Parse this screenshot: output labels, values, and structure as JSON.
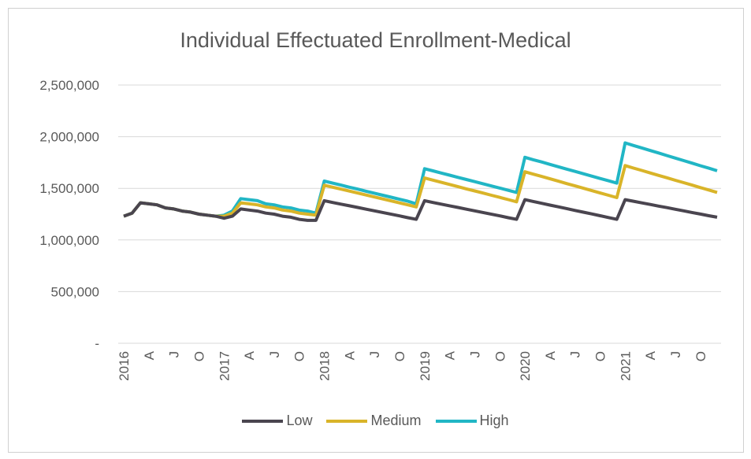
{
  "chart_data": {
    "type": "line",
    "title": "Individual Effectuated Enrollment-Medical",
    "xlabel": "",
    "ylabel": "",
    "ylim": [
      0,
      2500000
    ],
    "y_ticks": [
      0,
      500000,
      1000000,
      1500000,
      2000000,
      2500000
    ],
    "y_tick_labels": [
      "-",
      "500,000",
      "1,000,000",
      "1,500,000",
      "2,000,000",
      "2,500,000"
    ],
    "x_tick_labels": [
      "2016",
      "A",
      "J",
      "O",
      "2017",
      "A",
      "J",
      "O",
      "2018",
      "A",
      "J",
      "O",
      "2019",
      "A",
      "J",
      "O",
      "2020",
      "A",
      "J",
      "O",
      "2021",
      "A",
      "J",
      "O"
    ],
    "x_start": "2016-01",
    "x_end": "2021-12",
    "x_frequency": "monthly",
    "grid": true,
    "legend": "bottom",
    "series": [
      {
        "name": "Low",
        "color": "#4a454f",
        "values": [
          1230000,
          1260000,
          1360000,
          1350000,
          1340000,
          1310000,
          1300000,
          1280000,
          1270000,
          1250000,
          1240000,
          1230000,
          1210000,
          1230000,
          1300000,
          1290000,
          1280000,
          1260000,
          1250000,
          1230000,
          1220000,
          1200000,
          1190000,
          1190000,
          1380000,
          1363000,
          1347000,
          1331000,
          1315000,
          1298000,
          1282000,
          1266000,
          1249000,
          1233000,
          1216000,
          1200000,
          1380000,
          1363000,
          1347000,
          1331000,
          1315000,
          1298000,
          1282000,
          1266000,
          1249000,
          1233000,
          1216000,
          1200000,
          1390000,
          1373000,
          1355000,
          1338000,
          1321000,
          1304000,
          1286000,
          1269000,
          1252000,
          1235000,
          1217000,
          1200000,
          1390000,
          1375000,
          1359000,
          1344000,
          1328000,
          1313000,
          1297000,
          1282000,
          1266000,
          1251000,
          1235000,
          1220000
        ]
      },
      {
        "name": "Medium",
        "color": "#d9b429",
        "values": [
          1230000,
          1260000,
          1360000,
          1350000,
          1340000,
          1310000,
          1300000,
          1280000,
          1270000,
          1250000,
          1240000,
          1230000,
          1230000,
          1260000,
          1360000,
          1350000,
          1340000,
          1320000,
          1310000,
          1290000,
          1280000,
          1260000,
          1250000,
          1240000,
          1530000,
          1511000,
          1492000,
          1473000,
          1454000,
          1435000,
          1416000,
          1397000,
          1378000,
          1359000,
          1340000,
          1320000,
          1600000,
          1579000,
          1558000,
          1537000,
          1516000,
          1495000,
          1475000,
          1454000,
          1433000,
          1412000,
          1391000,
          1370000,
          1660000,
          1637000,
          1615000,
          1592000,
          1569000,
          1546000,
          1524000,
          1501000,
          1478000,
          1455000,
          1433000,
          1410000,
          1720000,
          1696000,
          1673000,
          1649000,
          1625000,
          1602000,
          1578000,
          1555000,
          1531000,
          1507000,
          1484000,
          1460000
        ]
      },
      {
        "name": "High",
        "color": "#21b6c5",
        "values": [
          1230000,
          1260000,
          1360000,
          1350000,
          1340000,
          1310000,
          1300000,
          1280000,
          1270000,
          1250000,
          1240000,
          1230000,
          1240000,
          1280000,
          1400000,
          1390000,
          1380000,
          1350000,
          1340000,
          1320000,
          1310000,
          1290000,
          1280000,
          1260000,
          1570000,
          1550000,
          1531000,
          1511000,
          1492000,
          1472000,
          1453000,
          1433000,
          1414000,
          1394000,
          1375000,
          1350000,
          1690000,
          1669000,
          1648000,
          1627000,
          1606000,
          1585000,
          1565000,
          1544000,
          1523000,
          1502000,
          1481000,
          1460000,
          1800000,
          1777000,
          1755000,
          1732000,
          1709000,
          1686000,
          1664000,
          1641000,
          1618000,
          1595000,
          1573000,
          1550000,
          1940000,
          1915000,
          1891000,
          1866000,
          1842000,
          1817000,
          1793000,
          1768000,
          1744000,
          1719000,
          1695000,
          1670000
        ]
      }
    ]
  }
}
